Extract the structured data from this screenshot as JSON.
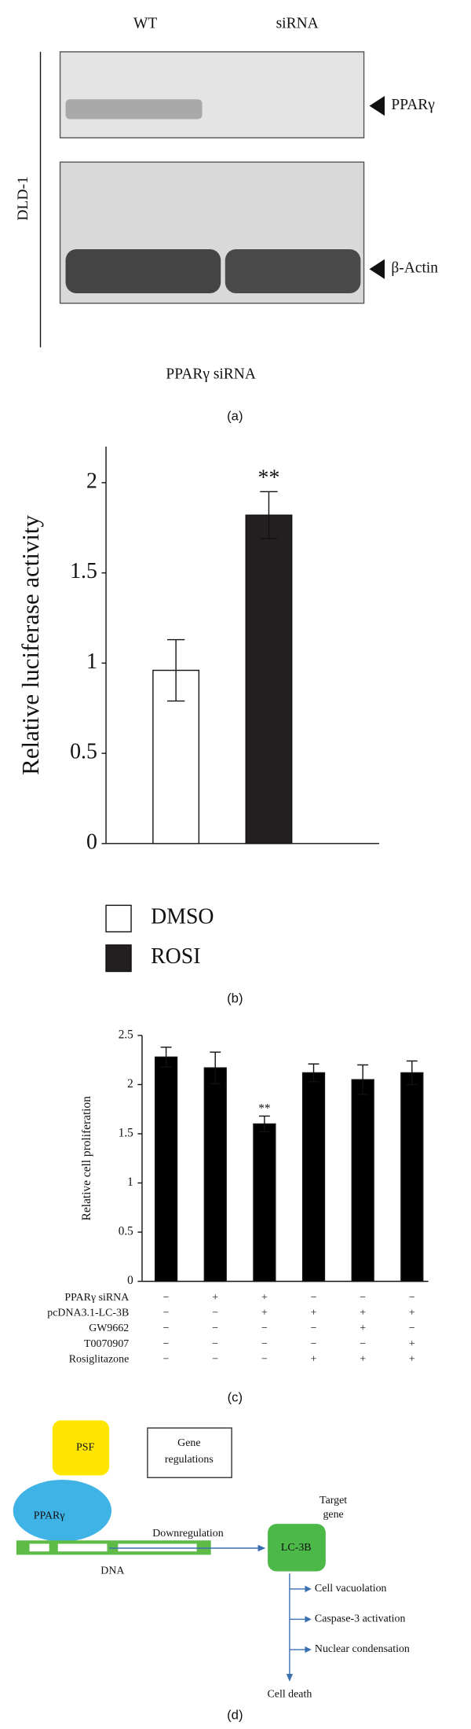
{
  "panel_a": {
    "lanes": [
      "WT",
      "siRNA"
    ],
    "cell_line": "DLD-1",
    "bands": [
      "PPARγ",
      "β-Actin"
    ],
    "caption": "PPARγ siRNA",
    "label": "(a)"
  },
  "chart_data": [
    {
      "type": "bar",
      "ylabel": "Relative luciferase activity",
      "categories": [
        null
      ],
      "series": [
        {
          "name": "DMSO",
          "color": "#ffffff",
          "values": [
            0.96
          ],
          "errors": [
            0.17
          ]
        },
        {
          "name": "ROSI",
          "color": "#231f20",
          "values": [
            1.82
          ],
          "errors": [
            0.13
          ],
          "annotations": [
            "**"
          ]
        }
      ],
      "ylim": [
        0,
        2.2
      ],
      "yticks": [
        0,
        0.5,
        1,
        1.5,
        2
      ],
      "legend": "bottom-left",
      "panel_label": "(b)"
    },
    {
      "type": "bar",
      "ylabel": "Relative cell proliferation",
      "categories": [
        null,
        null,
        null,
        null,
        null,
        null
      ],
      "series": [
        {
          "color": "#000000",
          "values": [
            2.28,
            2.17,
            1.6,
            2.12,
            2.05,
            2.12
          ],
          "errors": [
            0.1,
            0.16,
            0.08,
            0.09,
            0.15,
            0.12
          ],
          "annotations": [
            null,
            null,
            "**",
            null,
            null,
            null
          ]
        }
      ],
      "ylim": [
        0,
        2.5
      ],
      "yticks": [
        0,
        0.5,
        1,
        1.5,
        2,
        2.5
      ],
      "conditions": [
        {
          "label": "PPARγ siRNA",
          "values": [
            "−",
            "+",
            "+",
            "−",
            "−",
            "−"
          ]
        },
        {
          "label": "pcDNA3.1-LC-3B",
          "values": [
            "−",
            "−",
            "+",
            "+",
            "+",
            "+"
          ]
        },
        {
          "label": "GW9662",
          "values": [
            "−",
            "−",
            "−",
            "−",
            "+",
            "−"
          ]
        },
        {
          "label": "T0070907",
          "values": [
            "−",
            "−",
            "−",
            "−",
            "−",
            "+"
          ]
        },
        {
          "label": "Rosiglitazone",
          "values": [
            "−",
            "−",
            "−",
            "+",
            "+",
            "+"
          ]
        }
      ],
      "panel_label": "(c)"
    }
  ],
  "panel_d": {
    "psf": "PSF",
    "ppar": "PPARγ",
    "gene_regulations": [
      "Gene",
      "regulations"
    ],
    "downregulation": "Downregulation",
    "dna": "DNA",
    "target_gene": [
      "Target",
      "gene"
    ],
    "lc3b": "LC-3B",
    "effects": [
      "Cell vacuolation",
      "Caspase-3 activation",
      "Nuclear condensation"
    ],
    "outcome": "Cell death",
    "label": "(d)"
  }
}
